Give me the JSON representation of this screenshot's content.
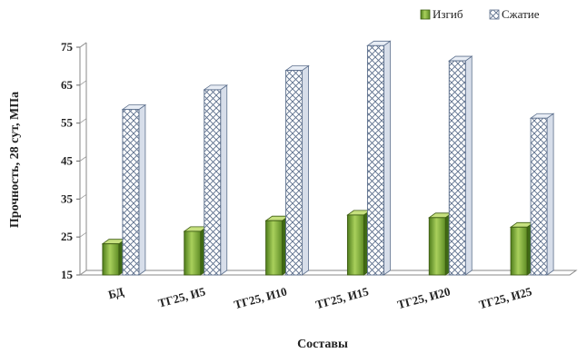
{
  "chart_data": {
    "type": "bar",
    "categories": [
      "БД",
      "ТГ25, И5",
      "ТГ25, И10",
      "ТГ25, И15",
      "ТГ25, И20",
      "ТГ25, И25"
    ],
    "series": [
      {
        "name": "Изгиб",
        "values": [
          23.2,
          26.5,
          29.3,
          30.8,
          30.1,
          27.6
        ]
      },
      {
        "name": "Сжатие",
        "values": [
          58.6,
          63.8,
          68.9,
          75.4,
          71.4,
          56.3
        ]
      }
    ],
    "xlabel": "Составы",
    "ylabel": "Прочность, 28 сут, МПа",
    "ylim": [
      15,
      75
    ],
    "yticks": [
      15,
      25,
      35,
      45,
      55,
      65,
      75
    ],
    "grid": false,
    "legend_position": "top-right",
    "colors": {
      "bend": "#6b9a2f",
      "bend_light": "#b8d96a",
      "compress_stroke": "#5c6f8c",
      "compress_fill": "#ffffff"
    }
  }
}
